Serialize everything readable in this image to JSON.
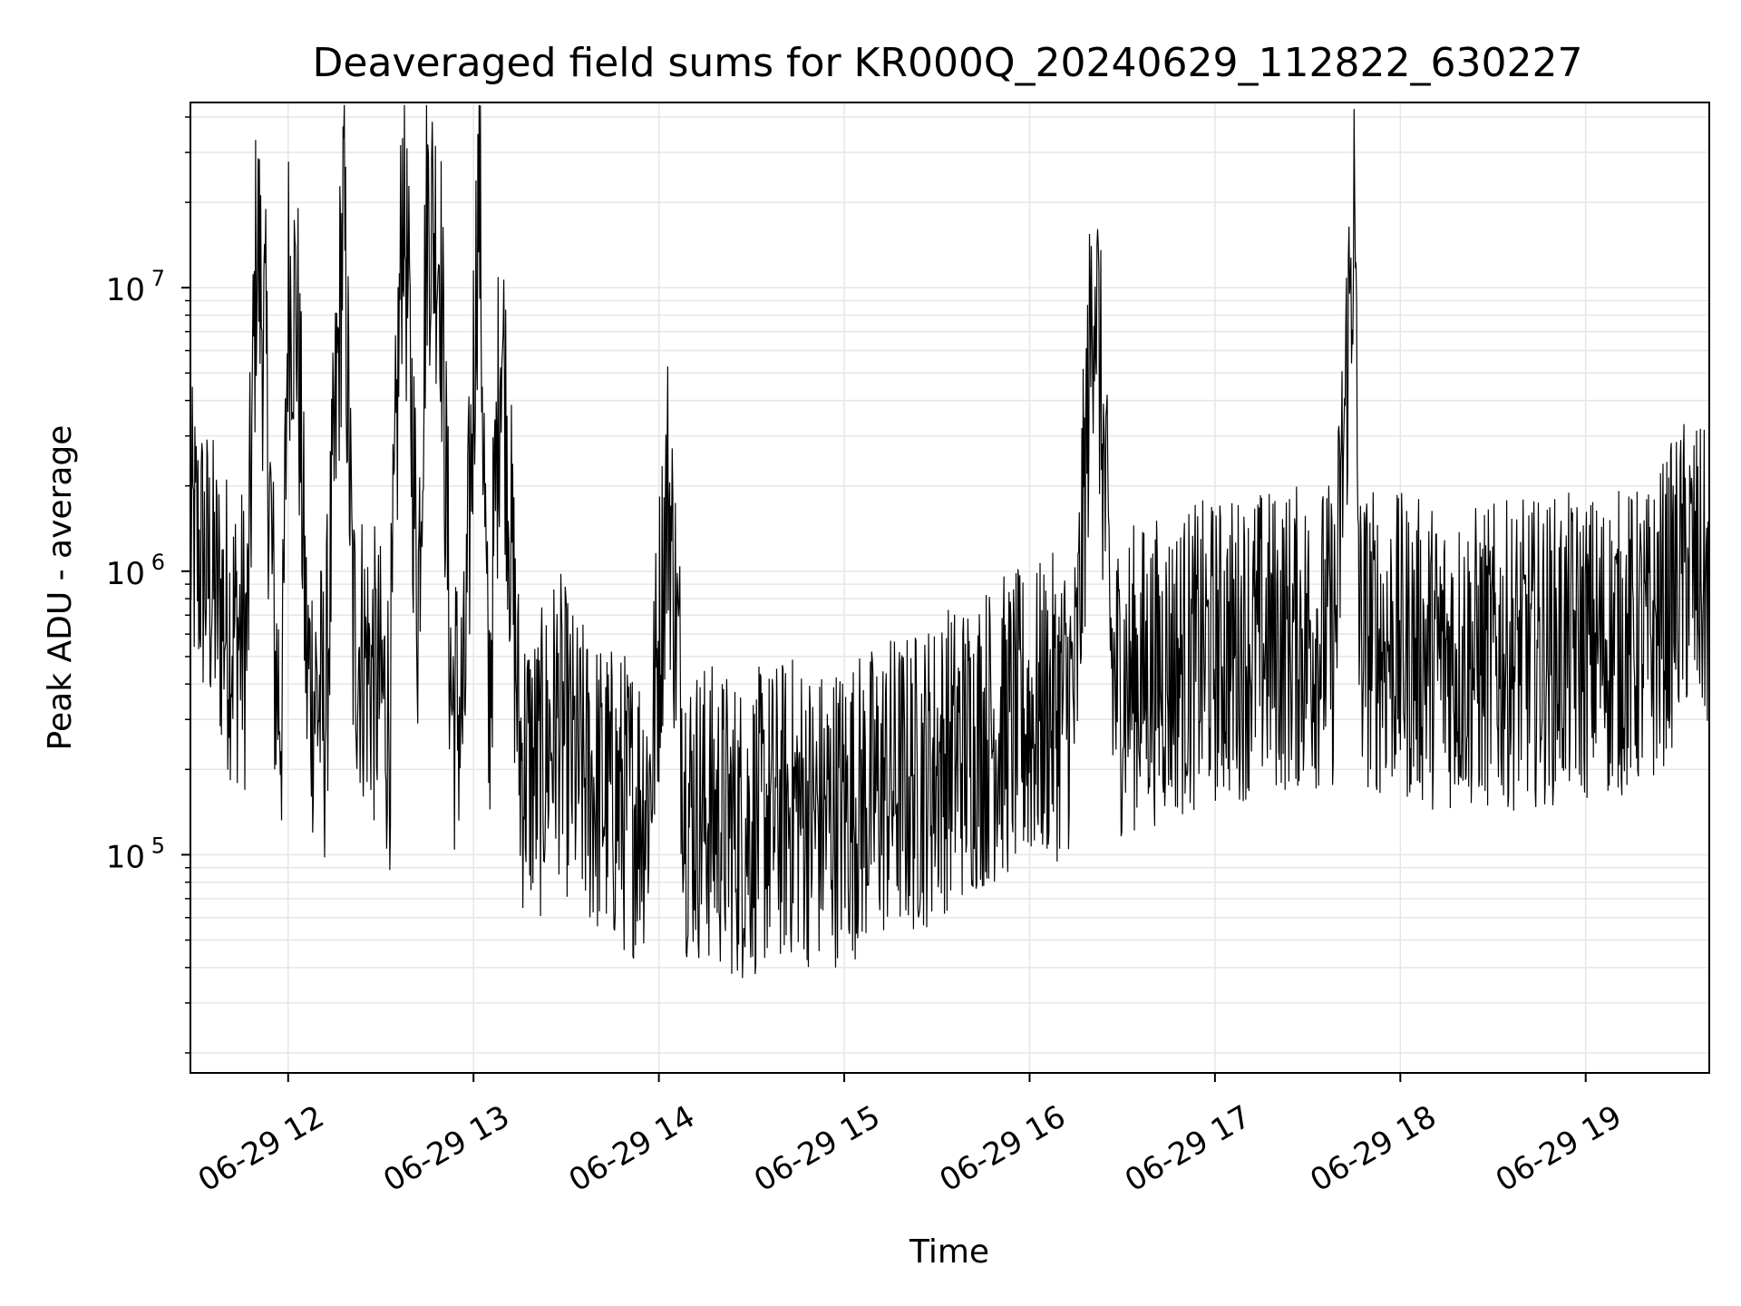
{
  "chart_data": {
    "type": "line",
    "title": "Deaveraged field sums for KR000Q_20240629_112822_630227",
    "xlabel": "Time",
    "ylabel": "Peak ADU - average",
    "yscale": "log",
    "xlim": [
      "2024-06-29 11:28:22",
      "2024-06-29 19:40:00"
    ],
    "ylim": [
      17000,
      45000000
    ],
    "grid": true,
    "x_ticks": [
      "06-29 12",
      "06-29 13",
      "06-29 14",
      "06-29 15",
      "06-29 16",
      "06-29 17",
      "06-29 18",
      "06-29 19"
    ],
    "y_ticks": [
      {
        "base": "10",
        "exp": "5",
        "value": 100000
      },
      {
        "base": "10",
        "exp": "6",
        "value": 1000000
      },
      {
        "base": "10",
        "exp": "7",
        "value": 10000000
      }
    ],
    "line_color": "#000000",
    "grid_color": "#e6e6e6",
    "series": [
      {
        "x_hours_note": "hour of day on 2024-06-29",
        "x": [
          11.47,
          11.55,
          11.62,
          11.7,
          11.78,
          11.83,
          11.88,
          11.93,
          11.97,
          12.0,
          12.05,
          12.1,
          12.2,
          12.3,
          12.35,
          12.45,
          12.55,
          12.62,
          12.7,
          12.75,
          12.82,
          12.88,
          12.95,
          13.03,
          13.08,
          13.15,
          13.25,
          13.35,
          13.45,
          13.55,
          13.65,
          13.75,
          13.85,
          13.95,
          14.05,
          14.15,
          14.25,
          14.35,
          14.45,
          14.55,
          14.65,
          14.75,
          14.85,
          14.95,
          15.05,
          15.15,
          15.25,
          15.35,
          15.45,
          15.55,
          15.65,
          15.75,
          15.85,
          15.95,
          16.05,
          16.15,
          16.25,
          16.35,
          16.45,
          16.55,
          16.65,
          16.75,
          16.85,
          16.95,
          17.05,
          17.15,
          17.25,
          17.35,
          17.45,
          17.55,
          17.65,
          17.75,
          17.78,
          17.85,
          17.95,
          18.05,
          18.15,
          18.25,
          18.35,
          18.45,
          18.55,
          18.65,
          18.75,
          18.85,
          18.95,
          19.05,
          19.15,
          19.25,
          19.35,
          19.45,
          19.55,
          19.65
        ],
        "y": [
          1500000,
          1200000,
          900000,
          700000,
          650000,
          18000000,
          6000000,
          500000,
          380000,
          12000000,
          9000000,
          500000,
          350000,
          22000000,
          700000,
          500000,
          350000,
          30000000,
          900000,
          22000000,
          16000000,
          400000,
          350000,
          30000000,
          300000,
          9500000,
          250000,
          220000,
          350000,
          230000,
          200000,
          180000,
          170000,
          190000,
          2300000,
          170000,
          160000,
          150000,
          140000,
          150000,
          160000,
          170000,
          150000,
          160000,
          170000,
          180000,
          200000,
          200000,
          220000,
          250000,
          270000,
          300000,
          320000,
          330000,
          350000,
          380000,
          420000,
          15000000,
          450000,
          480000,
          500000,
          520000,
          550000,
          580000,
          600000,
          620000,
          640000,
          650000,
          660000,
          670000,
          680000,
          22000000,
          700000,
          650000,
          620000,
          600000,
          580000,
          570000,
          560000,
          560000,
          570000,
          580000,
          590000,
          600000,
          610000,
          620000,
          630000,
          640000,
          650000,
          900000,
          1200000,
          1000000
        ]
      }
    ]
  }
}
